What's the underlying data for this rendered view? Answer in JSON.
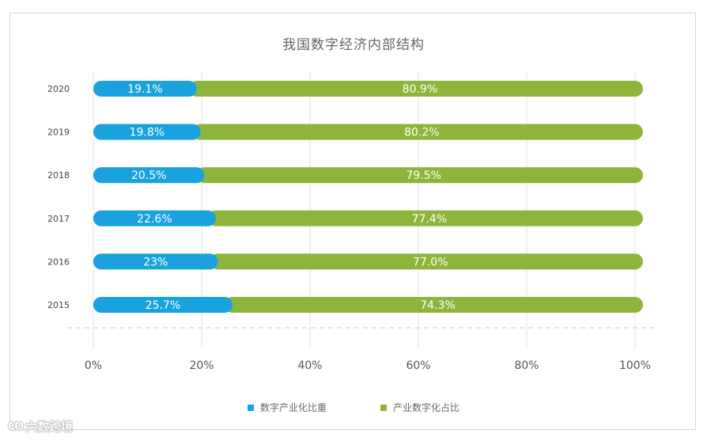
{
  "chart_data": {
    "type": "bar",
    "orientation": "horizontal",
    "stacked": true,
    "title": "我国数字经济内部结构",
    "categories": [
      "2020",
      "2019",
      "2018",
      "2017",
      "2016",
      "2015"
    ],
    "series": [
      {
        "name": "数字产业化比重",
        "color": "#1aa2de",
        "values": [
          19.1,
          19.8,
          20.5,
          22.6,
          23,
          25.7
        ],
        "labels": [
          "19.1%",
          "19.8%",
          "20.5%",
          "22.6%",
          "23%",
          "25.7%"
        ]
      },
      {
        "name": "产业数字化占比",
        "color": "#8db53c",
        "values": [
          80.9,
          80.2,
          79.5,
          77.4,
          77.0,
          74.3
        ],
        "labels": [
          "80.9%",
          "80.2%",
          "79.5%",
          "77.4%",
          "77.0%",
          "74.3%"
        ]
      }
    ],
    "xlim": [
      0,
      100
    ],
    "xticks": [
      "0%",
      "20%",
      "40%",
      "60%",
      "80%",
      "100%"
    ],
    "grid": true,
    "legend": "bottom-center"
  },
  "watermark": {
    "text": "六数跨境",
    "logo": "CO"
  }
}
